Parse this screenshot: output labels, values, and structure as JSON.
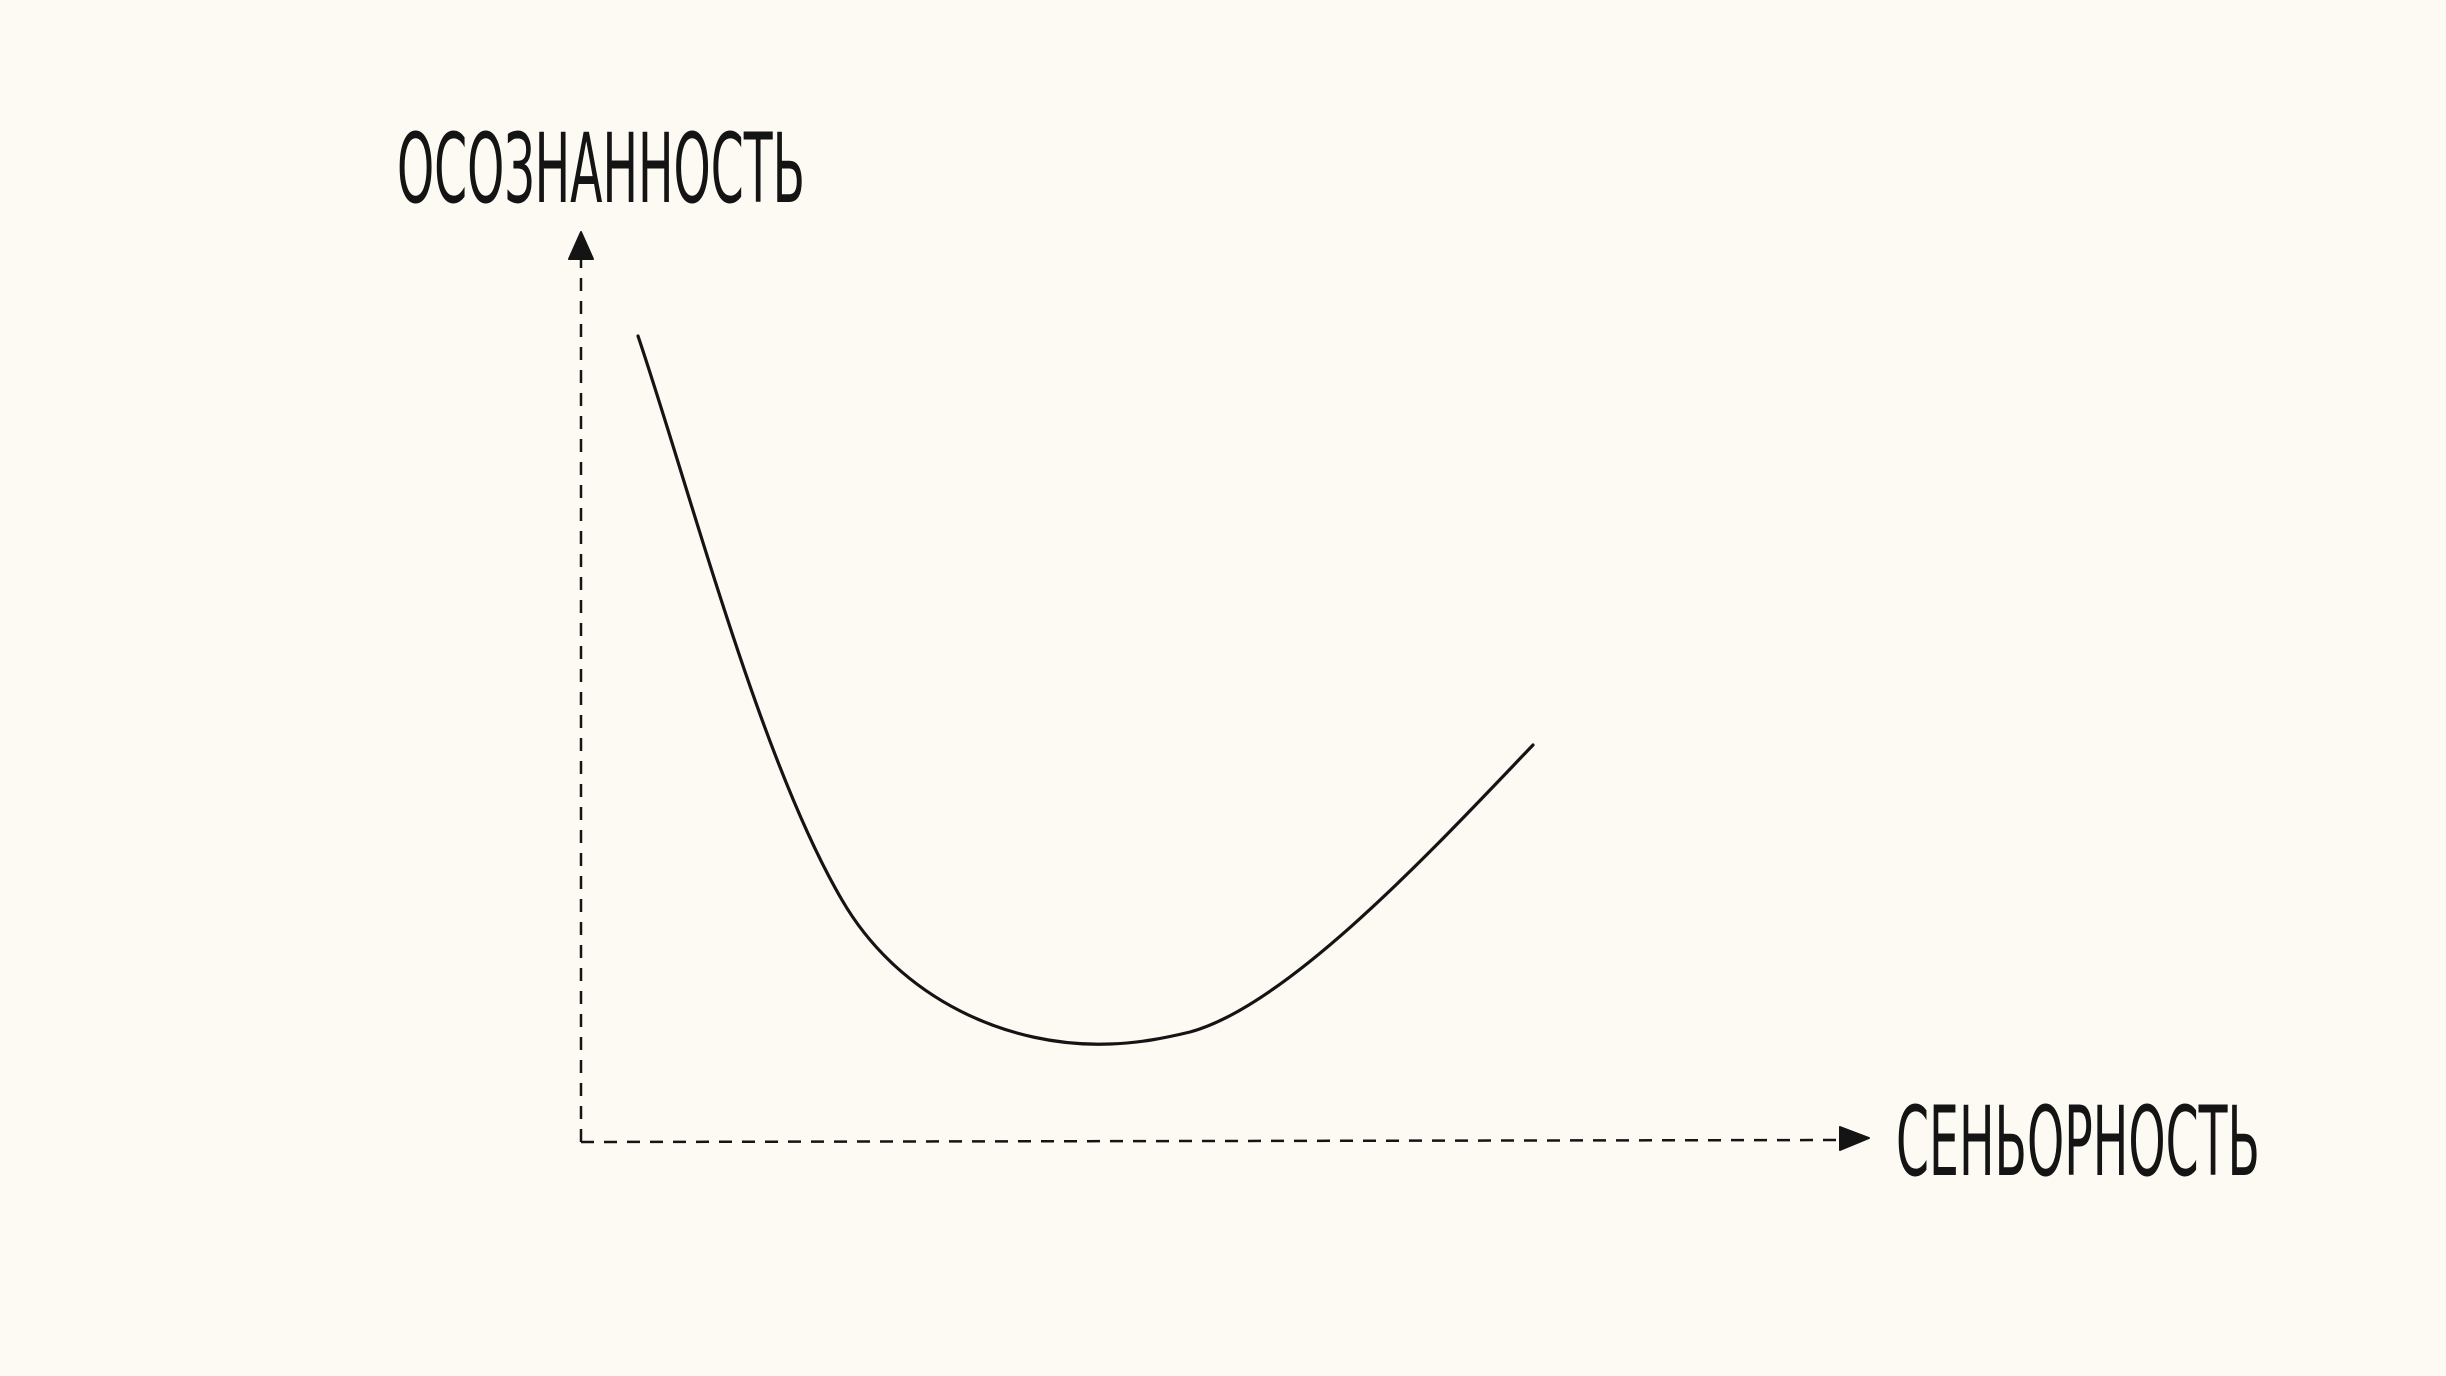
{
  "diagram": {
    "y_axis_label": "ОСОЗНАННОСТЬ",
    "x_axis_label": "СЕНЬОРНОСТЬ",
    "curve": {
      "description_points": [
        {
          "x": 0.0,
          "y": 0.86
        },
        {
          "x": 0.22,
          "y": 0.24
        },
        {
          "x": 0.44,
          "y": 0.1
        },
        {
          "x": 0.55,
          "y": 0.11
        },
        {
          "x": 1.0,
          "y": 0.43
        }
      ]
    },
    "colors": {
      "background": "#fdfaf4",
      "ink": "#141414"
    }
  }
}
